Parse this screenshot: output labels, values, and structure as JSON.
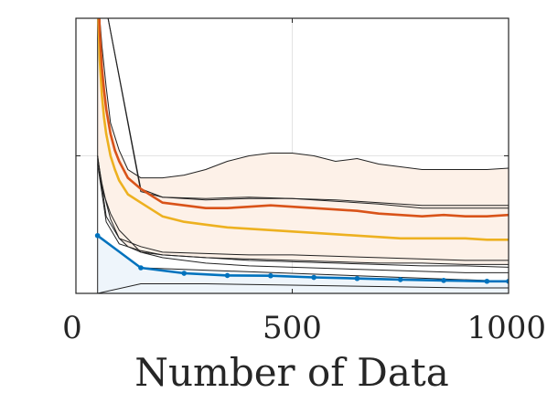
{
  "chart_data": {
    "type": "line",
    "title": "",
    "xlabel": "Number of Data",
    "ylabel": "",
    "xlim": [
      0,
      1000
    ],
    "ylim": [
      0,
      1
    ],
    "xticks": [
      0,
      500,
      1000
    ],
    "xtick_labels": [
      "0",
      "500",
      "1000"
    ],
    "yticks": [
      0.5
    ],
    "grid": true,
    "legend": "none",
    "series": [
      {
        "color": "#0072BD",
        "markers": true,
        "x": [
          50,
          150,
          250,
          350,
          450,
          550,
          650,
          750,
          850,
          950,
          1000
        ],
        "y": [
          0.21,
          0.093,
          0.073,
          0.065,
          0.064,
          0.058,
          0.054,
          0.05,
          0.047,
          0.044,
          0.044
        ],
        "band": {
          "fill": "#eef5fb",
          "upper_x": [
            50,
            150,
            1000
          ],
          "upper_y": [
            0.21,
            0.093,
            0.044
          ],
          "lower_x": [
            50,
            150,
            1000
          ],
          "lower_y": [
            0,
            0,
            0
          ]
        }
      },
      {
        "color": "#EDB120",
        "markers": false,
        "x": [
          50,
          55,
          60,
          65,
          70,
          80,
          90,
          100,
          120,
          150,
          180,
          200,
          250,
          300,
          350,
          400,
          450,
          500,
          550,
          600,
          650,
          700,
          750,
          800,
          850,
          900,
          950,
          1000
        ],
        "y": [
          1.1,
          0.85,
          0.72,
          0.64,
          0.58,
          0.5,
          0.45,
          0.41,
          0.36,
          0.33,
          0.3,
          0.28,
          0.26,
          0.25,
          0.24,
          0.235,
          0.23,
          0.225,
          0.22,
          0.215,
          0.21,
          0.205,
          0.2,
          0.2,
          0.2,
          0.2,
          0.195,
          0.195
        ],
        "band": {
          "fill": "#fdf1e8",
          "upper_x": [
            50,
            60,
            70,
            80,
            100,
            120,
            150,
            180,
            200,
            250,
            300,
            350,
            400,
            450,
            500,
            550,
            600,
            650,
            700,
            750,
            800,
            850,
            900,
            950,
            1000
          ],
          "upper_y": [
            1.1,
            0.9,
            0.75,
            0.62,
            0.52,
            0.45,
            0.42,
            0.42,
            0.42,
            0.43,
            0.45,
            0.48,
            0.5,
            0.51,
            0.51,
            0.5,
            0.48,
            0.49,
            0.47,
            0.46,
            0.45,
            0.45,
            0.45,
            0.45,
            0.455
          ],
          "lower_x": [
            50,
            60,
            70,
            80,
            100,
            120,
            150,
            200,
            250,
            300,
            400,
            500,
            600,
            700,
            800,
            900,
            1000
          ],
          "lower_y": [
            0.49,
            0.4,
            0.33,
            0.27,
            0.2,
            0.17,
            0.15,
            0.14,
            0.135,
            0.13,
            0.125,
            0.12,
            0.115,
            0.11,
            0.11,
            0.105,
            0.105
          ]
        }
      },
      {
        "color": "#D95319",
        "markers": false,
        "x": [
          50,
          55,
          60,
          65,
          70,
          80,
          90,
          100,
          120,
          150,
          180,
          200,
          250,
          300,
          350,
          400,
          450,
          500,
          550,
          600,
          650,
          700,
          750,
          800,
          850,
          900,
          950,
          1000
        ],
        "y": [
          1.2,
          0.95,
          0.82,
          0.74,
          0.67,
          0.58,
          0.52,
          0.48,
          0.42,
          0.38,
          0.35,
          0.33,
          0.32,
          0.31,
          0.31,
          0.315,
          0.32,
          0.315,
          0.31,
          0.305,
          0.3,
          0.29,
          0.285,
          0.28,
          0.285,
          0.28,
          0.28,
          0.285
        ]
      }
    ],
    "extra_lines": [
      {
        "color": "#222222",
        "x": [
          50,
          150,
          200,
          300,
          400,
          500,
          600,
          700,
          800,
          900,
          1000
        ],
        "y": [
          1.2,
          0.38,
          0.35,
          0.34,
          0.345,
          0.345,
          0.34,
          0.33,
          0.32,
          0.32,
          0.32
        ]
      },
      {
        "color": "#222222",
        "x": [
          50,
          150,
          200,
          300,
          400,
          500,
          600,
          700,
          800,
          900,
          1000
        ],
        "y": [
          1.2,
          0.37,
          0.35,
          0.345,
          0.35,
          0.345,
          0.335,
          0.325,
          0.31,
          0.31,
          0.31
        ]
      },
      {
        "color": "#222222",
        "x": [
          50,
          70,
          100,
          150,
          200,
          300,
          400,
          500,
          600,
          700,
          800,
          900,
          1000
        ],
        "y": [
          0.5,
          0.28,
          0.2,
          0.17,
          0.15,
          0.145,
          0.14,
          0.14,
          0.135,
          0.13,
          0.125,
          0.12,
          0.12
        ]
      },
      {
        "color": "#222222",
        "x": [
          50,
          70,
          100,
          150,
          200,
          300,
          400,
          500,
          600,
          700,
          800,
          900,
          1000
        ],
        "y": [
          0.47,
          0.26,
          0.18,
          0.155,
          0.14,
          0.13,
          0.12,
          0.115,
          0.11,
          0.105,
          0.1,
          0.1,
          0.095
        ]
      },
      {
        "color": "#222222",
        "x": [
          50,
          60,
          80,
          100,
          150,
          200,
          300,
          400,
          500,
          600,
          700,
          800,
          900,
          1000
        ],
        "y": [
          0.5,
          0.38,
          0.29,
          0.23,
          0.15,
          0.13,
          0.11,
          0.1,
          0.095,
          0.09,
          0.085,
          0.08,
          0.075,
          0.075
        ]
      },
      {
        "color": "#222222",
        "x": [
          50,
          150,
          300,
          500,
          700,
          900,
          1000
        ],
        "y": [
          0,
          0.035,
          0.035,
          0.03,
          0.025,
          0.02,
          0.02
        ]
      },
      {
        "color": "#222222",
        "x": [
          50,
          50
        ],
        "y": [
          0,
          1.2
        ]
      }
    ]
  }
}
